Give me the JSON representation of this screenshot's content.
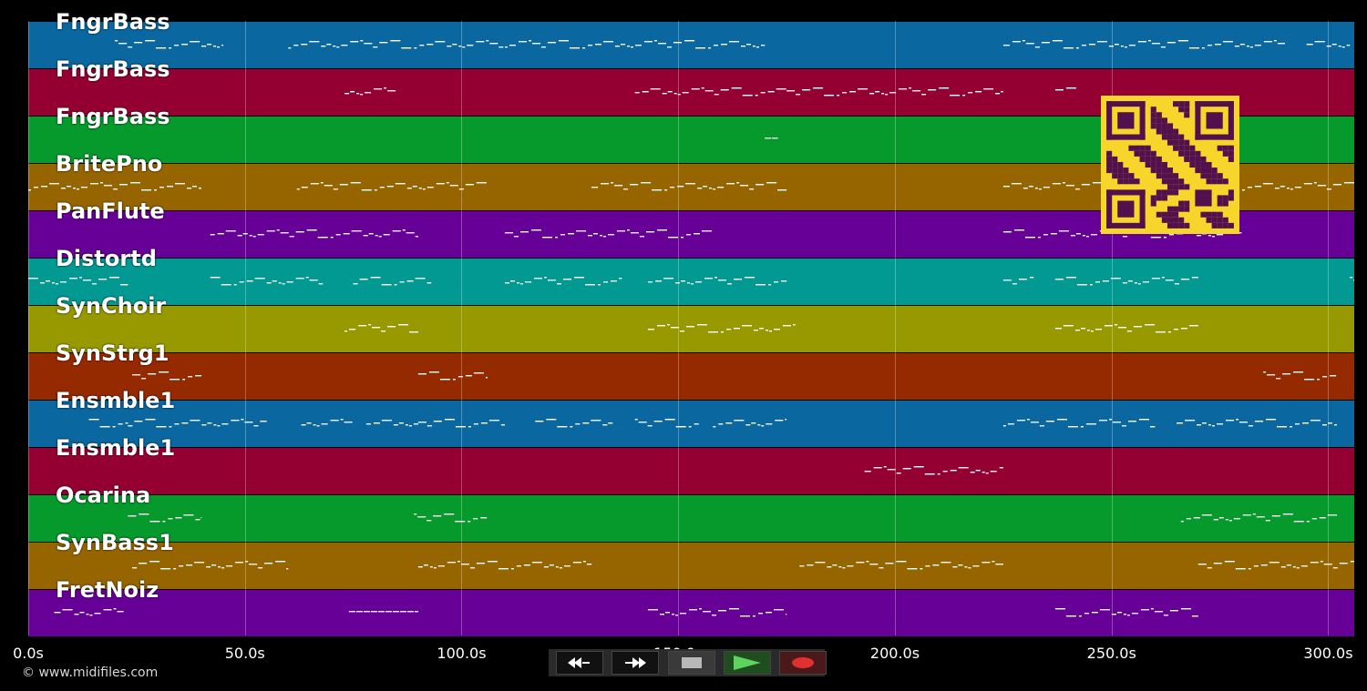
{
  "tracks": [
    {
      "name": "FngrBass",
      "color": "#0a67a0"
    },
    {
      "name": "FngrBass",
      "color": "#950033"
    },
    {
      "name": "FngrBass",
      "color": "#06992b"
    },
    {
      "name": "BritePno",
      "color": "#966500"
    },
    {
      "name": "PanFlute",
      "color": "#670097"
    },
    {
      "name": "Distortd",
      "color": "#039993"
    },
    {
      "name": "SynChoir",
      "color": "#989901"
    },
    {
      "name": "SynStrg1",
      "color": "#952900"
    },
    {
      "name": "Ensmble1",
      "color": "#0a67a0"
    },
    {
      "name": "Ensmble1",
      "color": "#950033"
    },
    {
      "name": "Ocarina",
      "color": "#06992b"
    },
    {
      "name": "SynBass1",
      "color": "#966500"
    },
    {
      "name": "FretNoiz",
      "color": "#670097"
    }
  ],
  "timeline": {
    "ticks": [
      "0.0s",
      "50.0s",
      "100.0s",
      "150.0s",
      "200.0s",
      "250.0s",
      "300.0s"
    ],
    "tick_seconds": [
      0,
      50,
      100,
      150,
      200,
      250,
      300
    ],
    "max_seconds": 306
  },
  "copyright": "© www.midifiles.com",
  "transport": {
    "rewind_icon": "rewind-icon",
    "fast_forward_icon": "fast-forward-icon",
    "stop_icon": "stop-icon",
    "play_icon": "play-icon",
    "record_icon": "record-icon"
  },
  "qr_code": {
    "color_bg": "#f7d52a",
    "color_fg": "#52114d"
  },
  "note_segments": [
    [
      [
        20,
        45
      ],
      [
        60,
        110
      ],
      [
        110,
        170
      ],
      [
        225,
        290
      ],
      [
        295,
        305
      ]
    ],
    [
      [
        73,
        85
      ],
      [
        140,
        175
      ],
      [
        175,
        225
      ],
      [
        237,
        242
      ]
    ],
    [
      [
        170,
        173
      ]
    ],
    [
      [
        0,
        40
      ],
      [
        62,
        106
      ],
      [
        130,
        175
      ],
      [
        225,
        306
      ]
    ],
    [
      [
        42,
        90
      ],
      [
        110,
        158
      ],
      [
        225,
        280
      ]
    ],
    [
      [
        0,
        23
      ],
      [
        42,
        68
      ],
      [
        75,
        93
      ],
      [
        110,
        137
      ],
      [
        143,
        175
      ],
      [
        225,
        232
      ],
      [
        237,
        270
      ],
      [
        305,
        306
      ]
    ],
    [
      [
        73,
        90
      ],
      [
        143,
        177
      ],
      [
        237,
        270
      ]
    ],
    [
      [
        24,
        40
      ],
      [
        90,
        106
      ],
      [
        285,
        302
      ]
    ],
    [
      [
        14,
        23
      ],
      [
        23,
        55
      ],
      [
        63,
        75
      ],
      [
        78,
        90
      ],
      [
        90,
        110
      ],
      [
        117,
        135
      ],
      [
        140,
        155
      ],
      [
        158,
        175
      ],
      [
        225,
        245
      ],
      [
        245,
        260
      ],
      [
        265,
        302
      ]
    ],
    [
      [
        193,
        225
      ]
    ],
    [
      [
        23,
        40
      ],
      [
        89,
        106
      ],
      [
        266,
        302
      ]
    ],
    [
      [
        24,
        60
      ],
      [
        90,
        130
      ],
      [
        178,
        225
      ],
      [
        270,
        306
      ]
    ],
    [
      [
        6,
        22
      ],
      [
        74,
        90
      ],
      [
        143,
        175
      ],
      [
        237,
        270
      ]
    ]
  ]
}
